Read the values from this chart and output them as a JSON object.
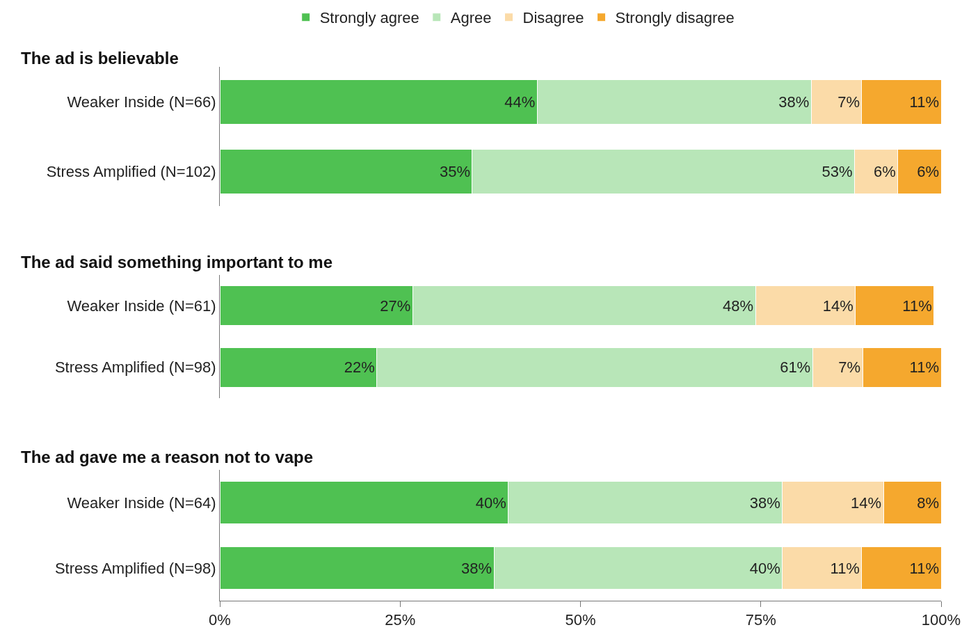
{
  "chart_data": [
    {
      "type": "bar",
      "title": "The ad is believable",
      "orientation": "horizontal",
      "stacked": true,
      "legend": "top",
      "tick_labels": "y",
      "xlim": [
        0,
        100
      ],
      "categories": [
        "Weaker Inside (N=66)",
        "Stress Amplified (N=102)"
      ],
      "series": [
        {
          "name": "Strongly agree",
          "color": "#4fc152",
          "values": [
            44,
            35
          ],
          "value_labels": [
            "44%",
            "35%"
          ]
        },
        {
          "name": "Agree",
          "color": "#b8e6b8",
          "values": [
            38,
            53
          ],
          "value_labels": [
            "38%",
            "53%"
          ]
        },
        {
          "name": "Disagree",
          "color": "#fbdba8",
          "values": [
            7,
            6
          ],
          "value_labels": [
            "7%",
            "6%"
          ]
        },
        {
          "name": "Strongly disagree",
          "color": "#f5a82e",
          "values": [
            11,
            6
          ],
          "value_labels": [
            "11%",
            "6%"
          ]
        }
      ]
    },
    {
      "type": "bar",
      "title": "The ad said something important to me",
      "orientation": "horizontal",
      "stacked": true,
      "tick_labels": "y",
      "xlim": [
        0,
        101
      ],
      "categories": [
        "Weaker Inside (N=61)",
        "Stress Amplified (N=98)"
      ],
      "series": [
        {
          "color": "#4fc152",
          "values": [
            27,
            22
          ],
          "value_labels": [
            "27%",
            "22%"
          ]
        },
        {
          "color": "#b8e6b8",
          "values": [
            48,
            61
          ],
          "value_labels": [
            "48%",
            "61%"
          ]
        },
        {
          "color": "#fbdba8",
          "values": [
            14,
            7
          ],
          "value_labels": [
            "14%",
            "7%"
          ]
        },
        {
          "color": "#f5a82e",
          "values": [
            11,
            11
          ],
          "value_labels": [
            "11%",
            "11%"
          ]
        }
      ]
    },
    {
      "type": "bar",
      "title": "The ad gave me a reason not to vape",
      "orientation": "horizontal",
      "stacked": true,
      "xlim": [
        0,
        100
      ],
      "xticks": [
        {
          "value": 0,
          "label": "0%"
        },
        {
          "value": 25,
          "label": "25%"
        },
        {
          "value": 50,
          "label": "50%"
        },
        {
          "value": 75,
          "label": "75%"
        },
        {
          "value": 100,
          "label": "100%"
        }
      ],
      "categories": [
        "Weaker Inside (N=64)",
        "Stress Amplified (N=98)"
      ],
      "series": [
        {
          "color": "#4fc152",
          "values": [
            40,
            38
          ],
          "value_labels": [
            "40%",
            "38%"
          ]
        },
        {
          "color": "#b8e6b8",
          "values": [
            38,
            40
          ],
          "value_labels": [
            "38%",
            "40%"
          ]
        },
        {
          "color": "#fbdba8",
          "values": [
            14,
            11
          ],
          "value_labels": [
            "14%",
            "11%"
          ]
        },
        {
          "color": "#f5a82e",
          "values": [
            8,
            11
          ],
          "value_labels": [
            "8%",
            "11%"
          ]
        }
      ]
    }
  ]
}
